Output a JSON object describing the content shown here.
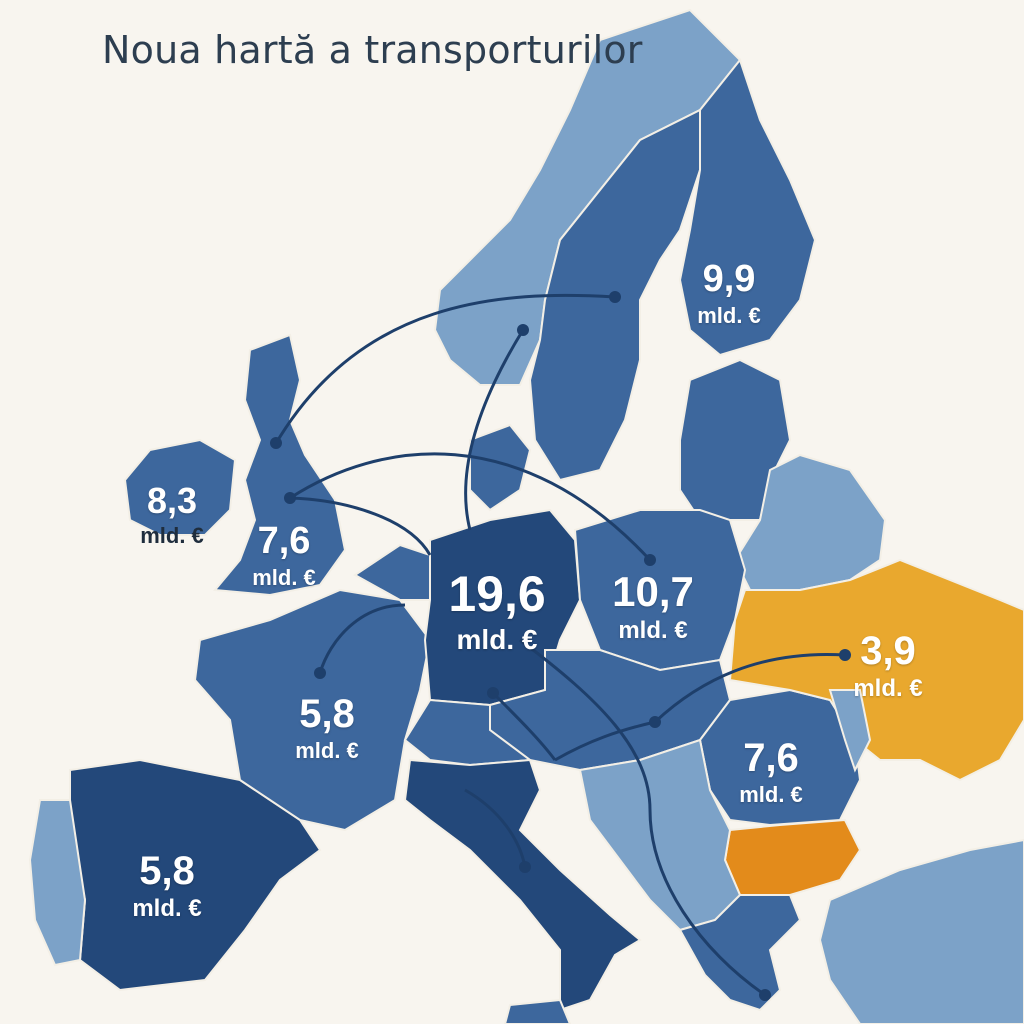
{
  "title": "Noua hartă a transporturilor",
  "unit": "mld. €",
  "colors": {
    "background": "#f8f5ef",
    "dark_blue": "#23487a",
    "mid_blue": "#3d679d",
    "light_blue": "#7ca2c8",
    "yellow": "#e9a82e",
    "orange": "#e38b1b",
    "route": "#1e3f6b"
  },
  "regions": [
    {
      "name": "Germania",
      "value": "19,6",
      "unit": "mld. €"
    },
    {
      "name": "Polonia",
      "value": "10,7",
      "unit": "mld. €"
    },
    {
      "name": "Finlanda",
      "value": "9,9",
      "unit": "mld. €"
    },
    {
      "name": "Irlanda",
      "value": "8,3",
      "unit": "mld. €"
    },
    {
      "name": "Regatul Unit",
      "value": "7,6",
      "unit": "mld. €"
    },
    {
      "name": "România",
      "value": "7,6",
      "unit": "mld. €"
    },
    {
      "name": "Franța",
      "value": "5,8",
      "unit": "mld. €"
    },
    {
      "name": "Spania",
      "value": "5,8",
      "unit": "mld. €"
    },
    {
      "name": "Ucraina",
      "value": "3,9",
      "unit": "mld. €"
    }
  ]
}
